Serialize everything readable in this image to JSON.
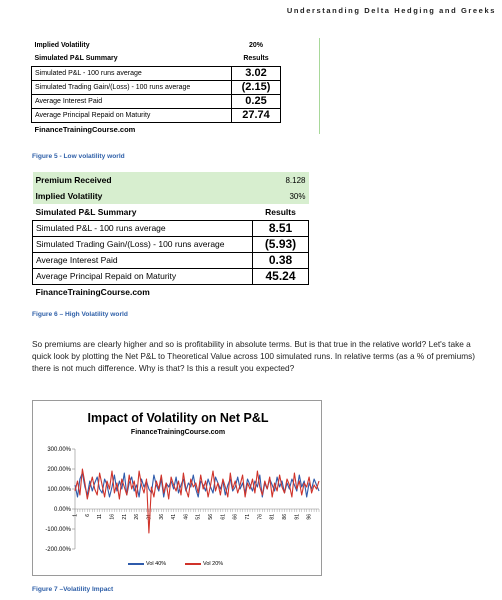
{
  "running_header": "Understanding Delta Hedging and Greeks",
  "table1": {
    "implied_vol_label": "Implied Volatility",
    "implied_vol_value": "20%",
    "summary_label": "Simulated P&L Summary",
    "results_label": "Results",
    "rows": [
      {
        "label": "Simulated P&L - 100 runs average",
        "value": "3.02"
      },
      {
        "label": "Simulated Trading Gain/(Loss) - 100 runs average",
        "value": "(2.15)"
      },
      {
        "label": "Average Interest Paid",
        "value": "0.25"
      },
      {
        "label": "Average Principal Repaid on Maturity",
        "value": "27.74"
      }
    ],
    "site": "FinanceTrainingCourse.com"
  },
  "caption1": "Figure 5 - Low volatility world",
  "table2": {
    "premium_label": "Premium Received",
    "premium_value": "8.128",
    "implied_vol_label": "Implied Volatility",
    "implied_vol_value": "30%",
    "summary_label": "Simulated P&L Summary",
    "results_label": "Results",
    "rows": [
      {
        "label": "Simulated P&L - 100 runs average",
        "value": "8.51"
      },
      {
        "label": "Simulated Trading Gain/(Loss) - 100 runs average",
        "value": "(5.93)"
      },
      {
        "label": "Average Interest Paid",
        "value": "0.38"
      },
      {
        "label": "Average Principal Repaid on Maturity",
        "value": "45.24"
      }
    ],
    "site": "FinanceTrainingCourse.com"
  },
  "caption2": "Figure 6 – High Volatility world",
  "paragraph": "So premiums are clearly higher and so is profitability in absolute terms. But is that true in the relative world? Let's take a quick look by plotting the Net P&L to Theoretical Value across 100 simulated runs. In relative terms (as a % of premiums) there is not much difference. Why is that? Is this a result you expected?",
  "chart_title": "Impact of Volatility on Net P&L",
  "chart_subtitle": "FinanceTrainingCourse.com",
  "caption3": "Figure 7 –Volatility Impact",
  "colors": {
    "vol40": "#2f5bab",
    "vol20": "#d0332a",
    "caption": "#2e5fa8",
    "green": "#d7eecf"
  },
  "chart_data": {
    "type": "line",
    "title": "Impact of Volatility on Net P&L",
    "subtitle": "FinanceTrainingCourse.com",
    "y_ticks": [
      "300.00%",
      "200.00%",
      "100.00%",
      "0.00%",
      "-100.00%",
      "-200.00%"
    ],
    "ylim": [
      -200,
      300
    ],
    "y_unit": "%",
    "x_range": [
      1,
      100
    ],
    "x_tick_labels": [
      "1",
      "6",
      "11",
      "16",
      "21",
      "26",
      "31",
      "36",
      "41",
      "46",
      "51",
      "56",
      "61",
      "66",
      "71",
      "76",
      "81",
      "86",
      "91",
      "96"
    ],
    "legend_position": "bottom",
    "grid": false,
    "series": [
      {
        "name": "Vol 40%",
        "color": "#2f5bab",
        "values": [
          120,
          60,
          150,
          180,
          110,
          70,
          140,
          90,
          130,
          160,
          100,
          80,
          150,
          120,
          60,
          110,
          170,
          90,
          140,
          100,
          180,
          70,
          130,
          160,
          90,
          120,
          60,
          150,
          110,
          140,
          100,
          80,
          170,
          120,
          90,
          150,
          60,
          130,
          110,
          140,
          100,
          160,
          80,
          120,
          150,
          90,
          130,
          110,
          170,
          100,
          60,
          140,
          120,
          90,
          150,
          110,
          80,
          160,
          130,
          100,
          140,
          70,
          120,
          150,
          90,
          110,
          160,
          100,
          130,
          80,
          150,
          120,
          90,
          140,
          110,
          170,
          60,
          130,
          100,
          150,
          120,
          90,
          160,
          110,
          140,
          80,
          130,
          100,
          150,
          120,
          90,
          170,
          110,
          140,
          60,
          130,
          100,
          150,
          120,
          90
        ]
      },
      {
        "name": "Vol 20%",
        "color": "#d0332a",
        "values": [
          90,
          140,
          70,
          200,
          130,
          50,
          110,
          160,
          100,
          70,
          180,
          120,
          60,
          140,
          100,
          190,
          80,
          130,
          50,
          150,
          110,
          70,
          170,
          100,
          140,
          60,
          190,
          120,
          80,
          150,
          -120,
          110,
          60,
          140,
          100,
          170,
          80,
          130,
          50,
          160,
          120,
          90,
          140,
          70,
          180,
          100,
          60,
          150,
          110,
          130,
          80,
          170,
          100,
          140,
          60,
          120,
          190,
          90,
          130,
          70,
          150,
          110,
          60,
          180,
          100,
          140,
          80,
          120,
          170,
          60,
          130,
          100,
          150,
          80,
          190,
          110,
          70,
          140,
          100,
          160,
          60,
          130,
          90,
          170,
          110,
          80,
          150,
          120,
          60,
          180,
          100,
          140,
          70,
          130,
          110,
          160,
          80,
          120,
          100,
          140
        ]
      }
    ]
  }
}
